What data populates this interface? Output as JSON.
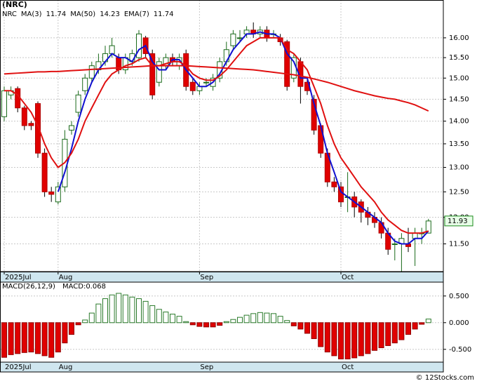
{
  "title": "(NRC)",
  "footer": "© 12Stocks.com",
  "chart_data": [
    {
      "type": "candlestick",
      "symbol": "NRC",
      "log_scale": true,
      "grid": true,
      "categories": [
        "2025Jul",
        null,
        null,
        null,
        null,
        null,
        null,
        null,
        "Aug",
        null,
        null,
        null,
        null,
        null,
        null,
        null,
        null,
        null,
        null,
        null,
        null,
        null,
        null,
        null,
        null,
        null,
        null,
        null,
        null,
        "Sep",
        null,
        null,
        null,
        null,
        null,
        null,
        null,
        null,
        null,
        null,
        null,
        null,
        null,
        null,
        null,
        null,
        null,
        null,
        null,
        null,
        "Oct",
        null,
        null,
        null,
        null,
        null,
        null,
        null,
        null,
        null,
        null,
        null,
        null,
        null
      ],
      "open": [
        14.1,
        14.6,
        14.75,
        14.3,
        13.95,
        14.4,
        13.3,
        12.5,
        12.3,
        12.6,
        13.8,
        14.2,
        14.7,
        15.0,
        15.2,
        15.4,
        15.6,
        15.5,
        15.2,
        15.4,
        15.5,
        16.0,
        15.6,
        14.9,
        15.3,
        15.5,
        15.3,
        15.6,
        14.9,
        14.7,
        14.9,
        14.8,
        15.0,
        15.4,
        15.8,
        16.0,
        16.1,
        16.2,
        16.1,
        16.2,
        16.1,
        16.0,
        15.9,
        15.0,
        15.4,
        14.9,
        14.5,
        13.9,
        13.3,
        12.7,
        12.6,
        12.4,
        12.4,
        12.3,
        12.1,
        12.0,
        11.9,
        11.7,
        11.5,
        11.5,
        11.5,
        11.6,
        11.7,
        11.7
      ],
      "high": [
        14.8,
        14.8,
        14.8,
        14.35,
        14.0,
        14.45,
        13.4,
        12.6,
        12.7,
        13.8,
        14.0,
        14.7,
        15.1,
        15.4,
        15.6,
        15.8,
        16.0,
        15.6,
        15.6,
        15.7,
        16.2,
        16.05,
        15.7,
        15.5,
        15.6,
        15.6,
        15.6,
        15.7,
        15.0,
        14.9,
        15.0,
        15.1,
        15.5,
        15.9,
        16.2,
        16.2,
        16.3,
        16.4,
        16.3,
        16.3,
        16.2,
        16.1,
        15.95,
        15.6,
        15.5,
        15.0,
        14.6,
        13.95,
        13.4,
        12.8,
        12.7,
        12.9,
        12.5,
        12.35,
        12.2,
        12.1,
        12.0,
        11.8,
        11.6,
        11.7,
        11.8,
        11.8,
        11.8,
        11.97
      ],
      "low": [
        14.0,
        14.5,
        14.2,
        13.8,
        13.8,
        13.2,
        12.4,
        12.3,
        12.25,
        12.5,
        13.7,
        14.1,
        14.6,
        14.9,
        15.1,
        15.3,
        15.5,
        15.1,
        15.1,
        15.3,
        15.4,
        15.5,
        14.5,
        14.8,
        15.2,
        15.3,
        15.2,
        14.7,
        14.6,
        14.6,
        14.8,
        14.7,
        14.9,
        15.3,
        15.7,
        15.9,
        16.0,
        16.0,
        16.0,
        15.9,
        16.0,
        15.8,
        14.7,
        14.9,
        14.4,
        14.6,
        13.7,
        13.2,
        12.6,
        12.5,
        12.2,
        12.1,
        12.0,
        11.9,
        11.85,
        11.8,
        11.6,
        11.3,
        11.2,
        11.0,
        11.35,
        11.1,
        11.5,
        11.7
      ],
      "close": [
        14.7,
        14.7,
        14.3,
        13.9,
        13.9,
        13.3,
        12.5,
        12.45,
        12.6,
        13.6,
        13.9,
        14.6,
        15.0,
        15.3,
        15.4,
        15.6,
        15.8,
        15.2,
        15.5,
        15.6,
        16.1,
        15.6,
        14.6,
        15.4,
        15.5,
        15.4,
        15.5,
        14.8,
        14.7,
        14.8,
        14.9,
        15.0,
        15.4,
        15.7,
        16.1,
        16.0,
        16.2,
        16.1,
        16.2,
        16.0,
        16.1,
        15.9,
        14.8,
        15.5,
        14.8,
        14.7,
        13.8,
        13.3,
        12.7,
        12.6,
        12.3,
        12.4,
        12.2,
        12.1,
        12.0,
        11.9,
        11.7,
        11.4,
        11.5,
        11.6,
        11.45,
        11.7,
        11.7,
        11.93
      ],
      "close_label": "11.93",
      "series": [
        {
          "name": "MA(3)",
          "color": "#1010d0",
          "last": 11.74,
          "values": [
            null,
            null,
            null,
            null,
            null,
            null,
            null,
            null,
            12.5,
            12.9,
            13.4,
            14.0,
            14.5,
            14.9,
            15.2,
            15.4,
            15.6,
            15.5,
            15.5,
            15.4,
            15.7,
            15.8,
            15.4,
            15.2,
            15.2,
            15.45,
            15.45,
            15.2,
            15.0,
            14.8,
            14.8,
            14.9,
            15.1,
            15.4,
            15.7,
            15.9,
            16.1,
            16.1,
            16.15,
            16.1,
            16.1,
            16.0,
            15.6,
            15.4,
            15.0,
            15.0,
            14.4,
            13.9,
            13.3,
            12.9,
            12.5,
            12.4,
            12.3,
            12.2,
            12.1,
            12.0,
            11.9,
            11.7,
            11.55,
            11.5,
            11.5,
            11.6,
            11.6,
            11.74
          ]
        },
        {
          "name": "MA(50)",
          "color": "#e01010",
          "last": 14.23,
          "values": [
            15.1,
            15.11,
            15.12,
            15.13,
            15.14,
            15.15,
            15.15,
            15.16,
            15.16,
            15.17,
            15.18,
            15.19,
            15.2,
            15.21,
            15.22,
            15.23,
            15.24,
            15.25,
            15.26,
            15.27,
            15.28,
            15.29,
            15.3,
            15.3,
            15.3,
            15.3,
            15.3,
            15.3,
            15.29,
            15.28,
            15.27,
            15.26,
            15.25,
            15.24,
            15.23,
            15.22,
            15.21,
            15.2,
            15.18,
            15.16,
            15.14,
            15.12,
            15.1,
            15.08,
            15.05,
            15.02,
            14.98,
            14.94,
            14.9,
            14.85,
            14.8,
            14.75,
            14.7,
            14.66,
            14.62,
            14.58,
            14.55,
            14.52,
            14.5,
            14.46,
            14.42,
            14.37,
            14.3,
            14.23
          ]
        },
        {
          "name": "EMA(7)",
          "color": "#e01010",
          "last": 11.74,
          "values": [
            14.7,
            14.7,
            14.6,
            14.4,
            14.2,
            13.9,
            13.5,
            13.2,
            13.0,
            13.1,
            13.3,
            13.6,
            14.0,
            14.3,
            14.6,
            14.9,
            15.1,
            15.2,
            15.3,
            15.35,
            15.45,
            15.5,
            15.3,
            15.3,
            15.35,
            15.4,
            15.4,
            15.3,
            15.1,
            15.0,
            14.95,
            14.95,
            15.05,
            15.2,
            15.4,
            15.6,
            15.8,
            15.9,
            16.0,
            16.0,
            16.0,
            16.0,
            15.7,
            15.6,
            15.4,
            15.2,
            14.8,
            14.4,
            13.9,
            13.5,
            13.2,
            13.0,
            12.8,
            12.6,
            12.45,
            12.3,
            12.1,
            11.95,
            11.85,
            11.75,
            11.7,
            11.7,
            11.7,
            11.74
          ]
        }
      ],
      "ylim": [
        11.0,
        17.0
      ],
      "yticks": [
        {
          "value": 11.5,
          "label": "11.50"
        },
        {
          "value": 12,
          "label": "12.00"
        },
        {
          "value": 12.5,
          "label": "12.50"
        },
        {
          "value": 13,
          "label": "13.00"
        },
        {
          "value": 13.5,
          "label": "13.50"
        },
        {
          "value": 14,
          "label": "14.00"
        },
        {
          "value": 14.5,
          "label": "14.50"
        },
        {
          "value": 15,
          "label": "15.00"
        },
        {
          "value": 15.5,
          "label": "15.50"
        },
        {
          "value": 16,
          "label": "16.00"
        }
      ]
    },
    {
      "type": "bar",
      "name": "MACD(26,12,9)",
      "value_name": "MACD",
      "value_label": "0.068",
      "grid": true,
      "values": [
        -0.65,
        -0.6,
        -0.58,
        -0.56,
        -0.55,
        -0.58,
        -0.62,
        -0.65,
        -0.55,
        -0.38,
        -0.22,
        -0.04,
        0.05,
        0.18,
        0.35,
        0.45,
        0.52,
        0.55,
        0.52,
        0.48,
        0.45,
        0.4,
        0.32,
        0.25,
        0.2,
        0.16,
        0.12,
        0.02,
        -0.04,
        -0.07,
        -0.08,
        -0.08,
        -0.05,
        0.02,
        0.06,
        0.1,
        0.14,
        0.17,
        0.19,
        0.18,
        0.17,
        0.12,
        0.04,
        -0.06,
        -0.12,
        -0.2,
        -0.3,
        -0.45,
        -0.55,
        -0.62,
        -0.68,
        -0.68,
        -0.66,
        -0.62,
        -0.58,
        -0.52,
        -0.47,
        -0.43,
        -0.38,
        -0.32,
        -0.22,
        -0.12,
        -0.03,
        0.068
      ],
      "colors": {
        "positive": "#2a7a2a",
        "negative": "#e00000"
      },
      "ylim": [
        -0.74,
        0.76
      ],
      "yticks": [
        {
          "value": -0.5,
          "label": "-0.500"
        },
        {
          "value": 0,
          "label": "0.000"
        },
        {
          "value": 0.5,
          "label": "0.500"
        }
      ]
    }
  ]
}
